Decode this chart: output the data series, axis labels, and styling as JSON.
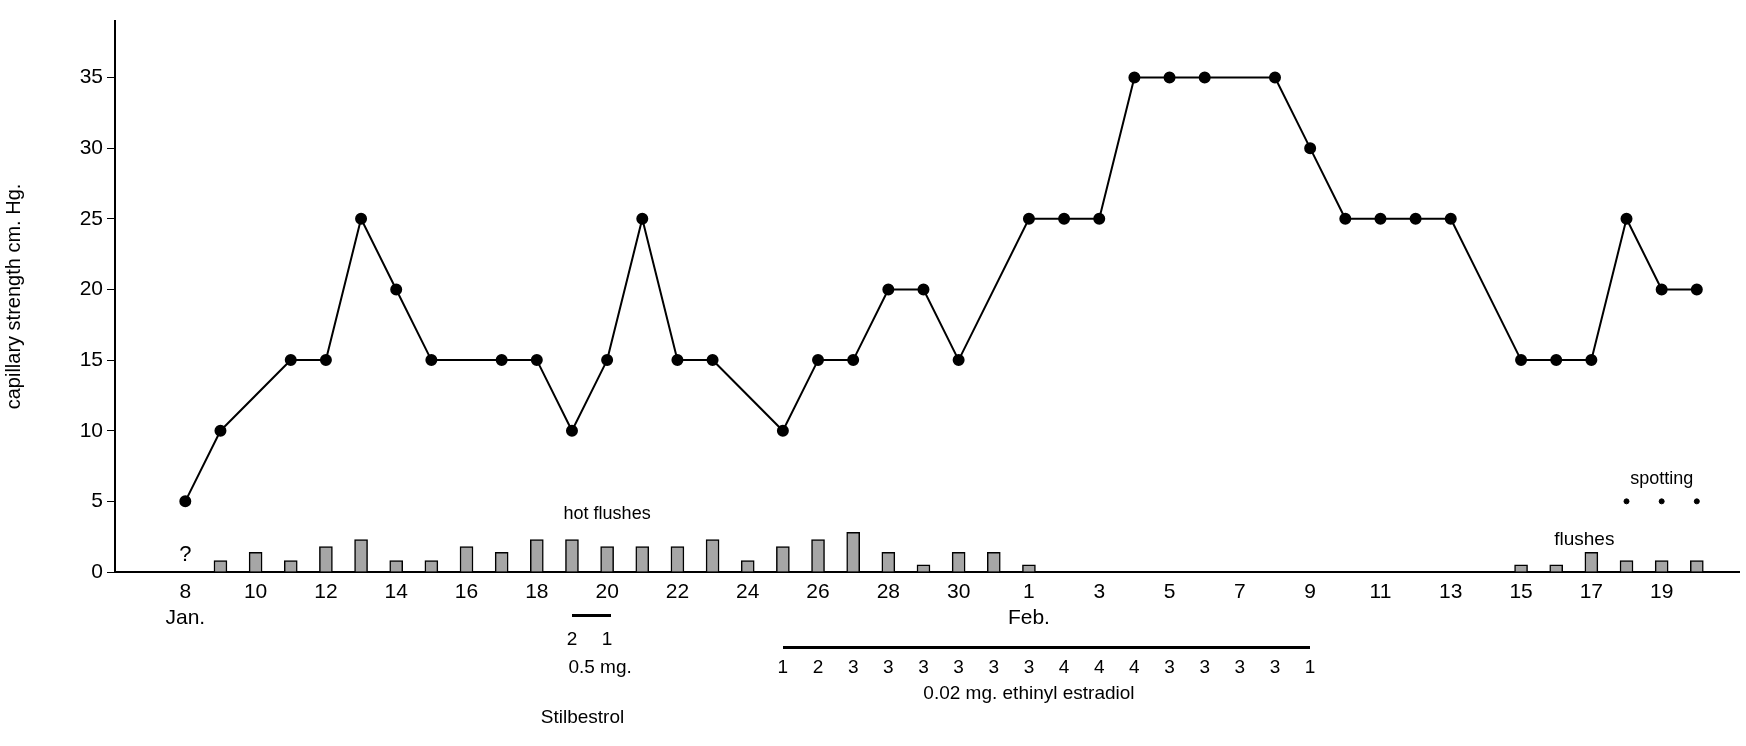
{
  "chart_data": {
    "type": "line",
    "ylabel": "capillary strength cm. Hg.",
    "categories": [
      "8\nJan.",
      null,
      "10",
      null,
      "12",
      null,
      "14",
      null,
      "16",
      null,
      "18",
      null,
      "20",
      null,
      "22",
      null,
      "24",
      null,
      "26",
      null,
      "28",
      null,
      "30",
      null,
      "1\nFeb.",
      null,
      "3",
      null,
      "5",
      null,
      "7",
      null,
      "9",
      null,
      "11",
      null,
      "13",
      null,
      "15",
      null,
      "17",
      null,
      "19",
      null
    ],
    "series": [
      {
        "type": "bar",
        "name": "hot flushes",
        "color": "#a6a6a6",
        "values": [
          null,
          0.8,
          1.4,
          0.8,
          1.8,
          2.3,
          0.8,
          0.8,
          1.8,
          1.4,
          2.3,
          2.3,
          1.8,
          1.8,
          1.8,
          2.3,
          0.8,
          1.8,
          2.3,
          2.8,
          1.4,
          0.5,
          1.4,
          1.4,
          0.5,
          null,
          null,
          null,
          null,
          null,
          null,
          null,
          null,
          null,
          null,
          null,
          null,
          null,
          0.5,
          0.5,
          1.4,
          0.8,
          0.8,
          0.8
        ]
      },
      {
        "color": "#000000",
        "values": [
          5,
          10,
          null,
          15,
          15,
          25,
          20,
          15,
          null,
          15,
          15,
          10,
          15,
          25,
          15,
          15,
          null,
          10,
          15,
          15,
          20,
          20,
          15,
          null,
          25,
          25,
          25,
          35,
          35,
          35,
          null,
          35,
          30,
          25,
          25,
          25,
          25,
          null,
          15,
          15,
          15,
          25,
          20,
          20
        ]
      },
      {
        "type": "scatter",
        "name": "spotting",
        "color": "#000000",
        "values": [
          null,
          null,
          null,
          null,
          null,
          null,
          null,
          null,
          null,
          null,
          null,
          null,
          null,
          null,
          null,
          null,
          null,
          null,
          null,
          null,
          null,
          null,
          null,
          null,
          null,
          null,
          null,
          null,
          null,
          null,
          null,
          null,
          null,
          null,
          null,
          null,
          null,
          null,
          null,
          null,
          null,
          5,
          5,
          5
        ]
      }
    ],
    "ylim": [
      0,
      39
    ],
    "yticks": [
      0,
      5,
      10,
      15,
      20,
      25,
      30,
      35
    ],
    "grid": false,
    "legend": false,
    "marker": "circle",
    "line_style": "solid",
    "annotations": [
      "?",
      "flushes",
      "2 1",
      "0.5 mg.",
      "Stilbestrol",
      "1 2 3 3 3 3 3 3 4 4 4 3 3 3 3 1",
      "0.02 mg. ethinyl estradiol"
    ]
  }
}
